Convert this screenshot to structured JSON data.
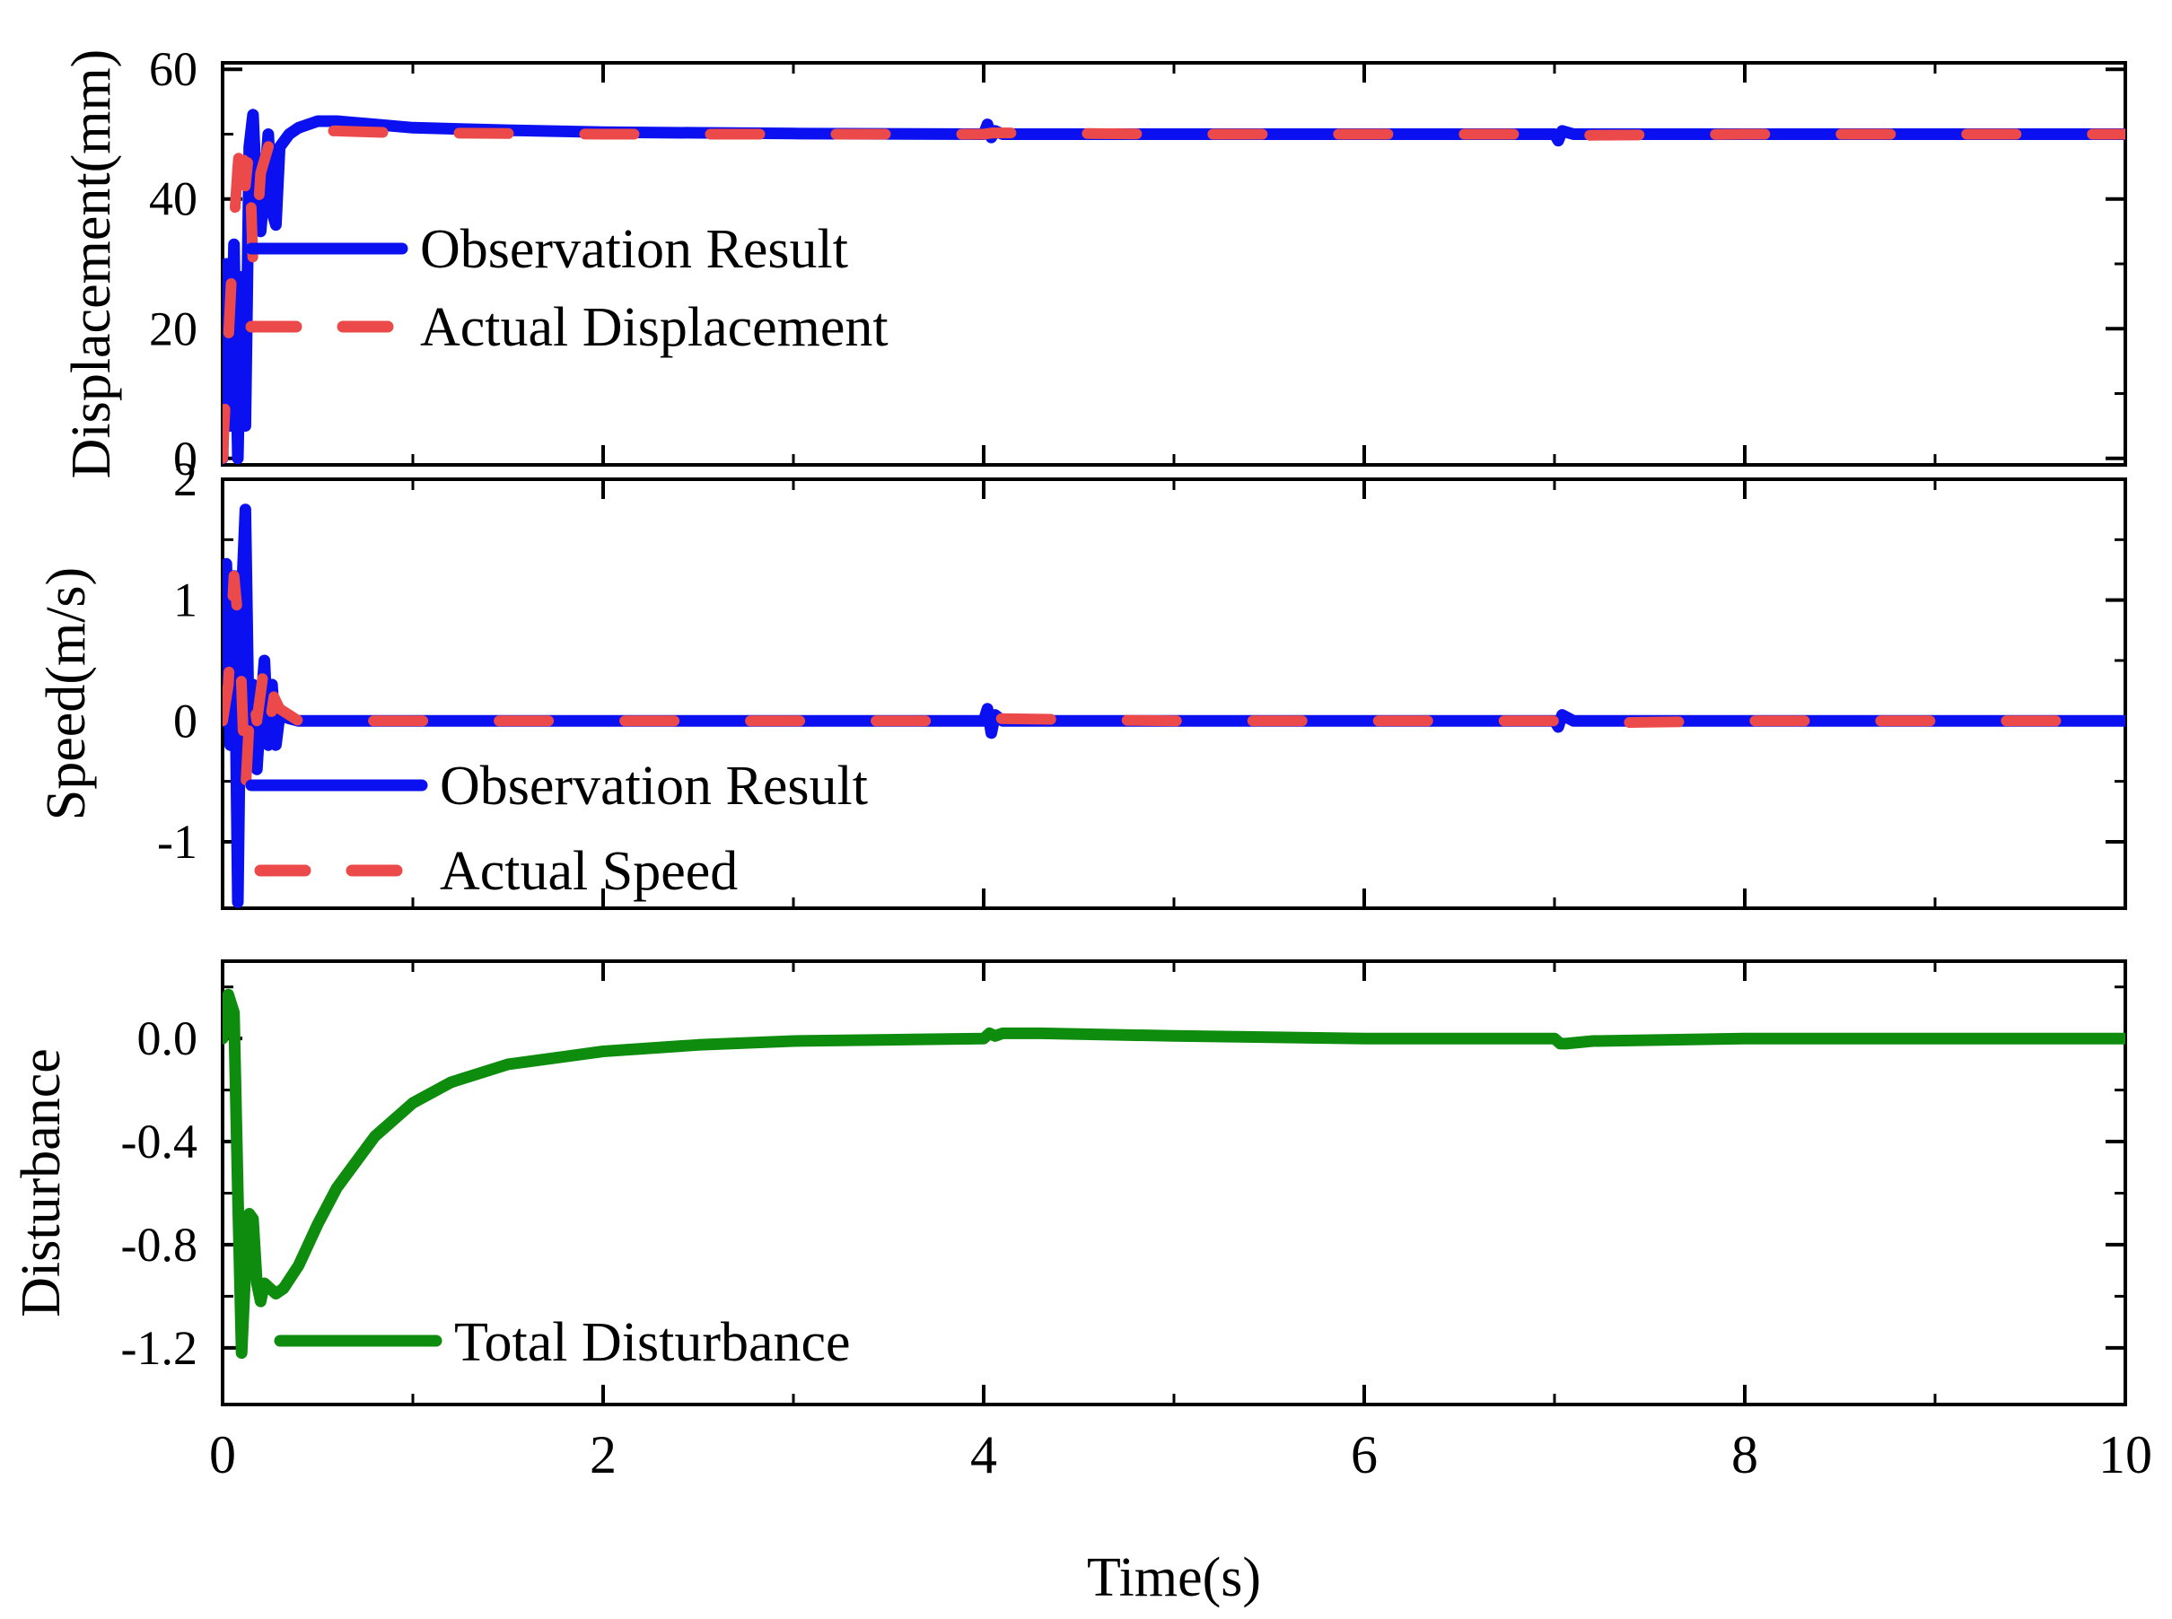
{
  "colors": {
    "observation": "#0a10f0",
    "actual": "#ec4a4a",
    "disturbance": "#0d8c0d"
  },
  "chart_data": [
    {
      "type": "line",
      "id": "displacement",
      "title": "",
      "xlabel": "",
      "ylabel": "Displacement(mm)",
      "xlim": [
        0,
        10
      ],
      "ylim": [
        -1,
        61
      ],
      "yticks": [
        0,
        20,
        40,
        60
      ],
      "ytick_labels": [
        "0",
        "20",
        "40",
        "60"
      ],
      "legend_position": "upper-left",
      "series": [
        {
          "name": "Observation Result",
          "color_key": "observation",
          "style": "solid",
          "x": [
            0,
            0.02,
            0.04,
            0.06,
            0.08,
            0.1,
            0.12,
            0.14,
            0.16,
            0.18,
            0.2,
            0.22,
            0.24,
            0.26,
            0.28,
            0.3,
            0.35,
            0.4,
            0.5,
            0.6,
            0.8,
            1.0,
            1.5,
            2,
            3,
            4,
            4.02,
            4.04,
            4.06,
            4.1,
            5,
            6,
            7,
            7.02,
            7.04,
            7.1,
            8,
            9,
            10
          ],
          "y": [
            0,
            30,
            5,
            33,
            0,
            28,
            5,
            48,
            53,
            40,
            35,
            42,
            50,
            38,
            36,
            48,
            50,
            51,
            52,
            52,
            51.5,
            51,
            50.6,
            50.3,
            50.1,
            50,
            51.5,
            49.5,
            50.5,
            50,
            50,
            50,
            50,
            49,
            50.5,
            50,
            50,
            50,
            50
          ]
        },
        {
          "name": "Actual Displacement",
          "color_key": "actual",
          "style": "dashed",
          "x": [
            0,
            0.02,
            0.04,
            0.06,
            0.08,
            0.1,
            0.12,
            0.14,
            0.16,
            0.18,
            0.2,
            0.25,
            0.3,
            0.35,
            0.4,
            0.5,
            0.6,
            0.8,
            1.0,
            1.5,
            2,
            3,
            4,
            4.05,
            5,
            6,
            7,
            7.05,
            8,
            9,
            10
          ],
          "y": [
            0,
            12,
            24,
            36,
            45,
            52,
            42,
            48,
            30,
            35,
            44,
            49,
            48,
            49.5,
            50,
            50.5,
            50.5,
            50.3,
            50.2,
            50.1,
            50,
            50,
            50,
            50.2,
            50,
            50,
            50,
            49.8,
            50,
            50,
            50
          ]
        }
      ]
    },
    {
      "type": "line",
      "id": "speed",
      "title": "",
      "xlabel": "",
      "ylabel": "Speed(m/s)",
      "xlim": [
        0,
        10
      ],
      "ylim": [
        -1.55,
        2.0
      ],
      "yticks": [
        -1,
        0,
        1,
        2
      ],
      "ytick_labels": [
        "-1",
        "0",
        "1",
        "2"
      ],
      "legend_position": "lower-left",
      "series": [
        {
          "name": "Observation Result",
          "color_key": "observation",
          "style": "solid",
          "x": [
            0,
            0.02,
            0.04,
            0.06,
            0.08,
            0.1,
            0.12,
            0.14,
            0.16,
            0.18,
            0.2,
            0.22,
            0.24,
            0.26,
            0.28,
            0.3,
            0.35,
            0.4,
            0.5,
            1,
            2,
            3,
            4,
            4.02,
            4.04,
            4.06,
            4.1,
            5,
            6,
            7,
            7.02,
            7.04,
            7.1,
            8,
            9,
            10
          ],
          "y": [
            0,
            1.3,
            -0.2,
            1.2,
            -1.5,
            1.0,
            1.75,
            -0.3,
            0.3,
            -0.4,
            0.1,
            0.5,
            -0.2,
            0.3,
            -0.2,
            0.05,
            0.02,
            0,
            0,
            0,
            0,
            0,
            0,
            0.1,
            -0.1,
            0.05,
            0,
            0,
            0,
            0,
            -0.05,
            0.05,
            0,
            0,
            0,
            0
          ]
        },
        {
          "name": "Actual Speed",
          "color_key": "actual",
          "style": "dashed",
          "x": [
            0,
            0.03,
            0.06,
            0.09,
            0.12,
            0.15,
            0.18,
            0.21,
            0.24,
            0.27,
            0.3,
            0.35,
            0.4,
            0.5,
            1,
            2,
            3,
            4,
            4.05,
            5,
            6,
            7,
            7.05,
            8,
            9,
            10
          ],
          "y": [
            0,
            0.3,
            1.2,
            0.7,
            -0.6,
            0.3,
            0.0,
            0.35,
            -0.1,
            0.2,
            0.1,
            0.05,
            0,
            0,
            0,
            0,
            0,
            0,
            0.02,
            0,
            0,
            0,
            -0.02,
            0,
            0,
            0
          ]
        }
      ]
    },
    {
      "type": "line",
      "id": "disturbance",
      "title": "",
      "xlabel": "Time(s)",
      "ylabel": "Disturbance",
      "xlim": [
        0,
        10
      ],
      "ylim": [
        -1.42,
        0.3
      ],
      "xticks": [
        0,
        2,
        4,
        6,
        8,
        10
      ],
      "xtick_labels": [
        "0",
        "2",
        "4",
        "6",
        "8",
        "10"
      ],
      "yticks": [
        -1.2,
        -0.8,
        -0.4,
        0.0
      ],
      "ytick_labels": [
        "-1.2",
        "-0.8",
        "-0.4",
        "0.0"
      ],
      "legend_position": "lower-left",
      "series": [
        {
          "name": "Total Disturbance",
          "color_key": "disturbance",
          "style": "solid",
          "x": [
            0,
            0.03,
            0.06,
            0.08,
            0.1,
            0.12,
            0.14,
            0.16,
            0.18,
            0.2,
            0.22,
            0.25,
            0.28,
            0.32,
            0.4,
            0.5,
            0.6,
            0.8,
            1.0,
            1.2,
            1.5,
            2.0,
            2.5,
            3.0,
            3.5,
            4.0,
            4.03,
            4.06,
            4.1,
            4.3,
            5,
            6,
            7,
            7.03,
            7.06,
            7.2,
            8,
            9,
            10
          ],
          "y": [
            0,
            0.17,
            0.1,
            -0.6,
            -1.22,
            -0.9,
            -0.68,
            -0.7,
            -0.95,
            -1.02,
            -0.95,
            -0.97,
            -0.99,
            -0.97,
            -0.88,
            -0.72,
            -0.58,
            -0.38,
            -0.25,
            -0.17,
            -0.1,
            -0.05,
            -0.025,
            -0.01,
            -0.005,
            0,
            0.02,
            0.01,
            0.02,
            0.02,
            0.01,
            0.0,
            0.0,
            -0.02,
            -0.02,
            -0.01,
            0,
            0,
            0
          ]
        }
      ]
    }
  ]
}
